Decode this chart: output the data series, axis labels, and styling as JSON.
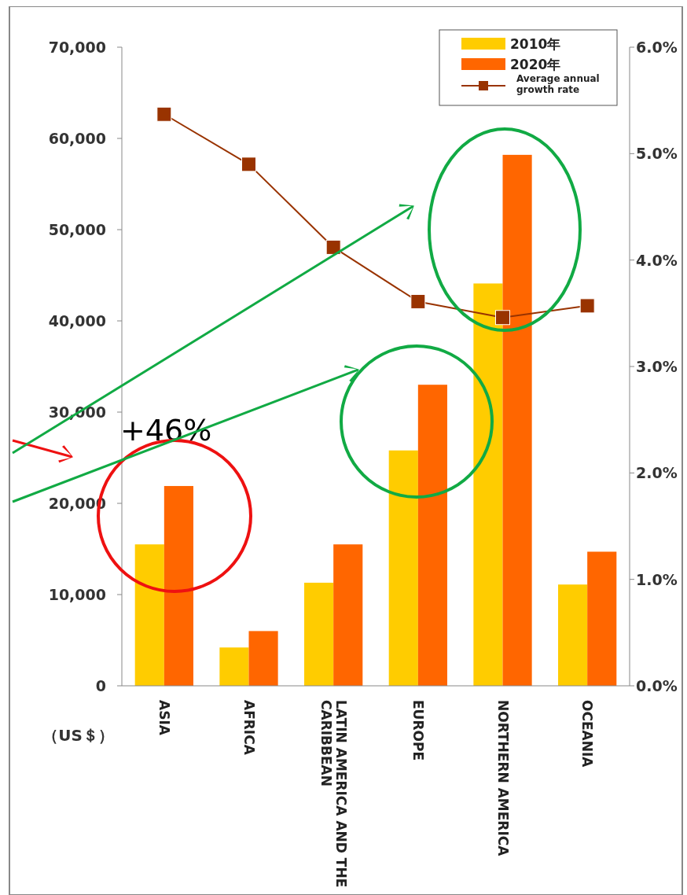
{
  "chart_data": {
    "type": "bar",
    "ylabel": "（US＄）",
    "categories": [
      "ASIA",
      "AFRICA",
      "LATIN AMERICA AND THE CARIBBEAN",
      "EUROPE",
      "NORTHERN AMERICA",
      "OCEANIA"
    ],
    "series": [
      {
        "name": "2010年",
        "color": "#ffcc00",
        "values": [
          15500,
          4200,
          11300,
          25800,
          44100,
          11100
        ]
      },
      {
        "name": "2020年",
        "color": "#ff6600",
        "values": [
          21900,
          6000,
          15500,
          33000,
          58200,
          14700
        ]
      },
      {
        "name": "Average annual growth rate",
        "type": "line",
        "axis": "y2",
        "color": "#993300",
        "marker": "square",
        "values": [
          5.37,
          4.9,
          4.12,
          3.61,
          3.46,
          3.57
        ]
      }
    ],
    "ylim": [
      0,
      70000
    ],
    "yticks": [
      0,
      {
        "value": 10000,
        "label": "10,000"
      },
      {
        "value": 20000,
        "label": "20,000"
      },
      {
        "value": 30000,
        "label": "30,000"
      },
      {
        "value": 40000,
        "label": "40,000"
      },
      {
        "value": 50000,
        "label": "50,000"
      },
      {
        "value": 60000,
        "label": "60,000"
      },
      {
        "value": 70000,
        "label": "70,000"
      }
    ],
    "y2lim": [
      0,
      6
    ],
    "y2ticks": [
      {
        "value": 0,
        "label": "0.0%"
      },
      {
        "value": 1,
        "label": "1.0%"
      },
      {
        "value": 2,
        "label": "2.0%"
      },
      {
        "value": 3,
        "label": "3.0%"
      },
      {
        "value": 4,
        "label": "4.0%"
      },
      {
        "value": 5,
        "label": "5.0%"
      },
      {
        "value": 6,
        "label": "6.0%"
      }
    ],
    "annotations": [
      "+46%"
    ],
    "legend": "top right",
    "grid": false
  }
}
